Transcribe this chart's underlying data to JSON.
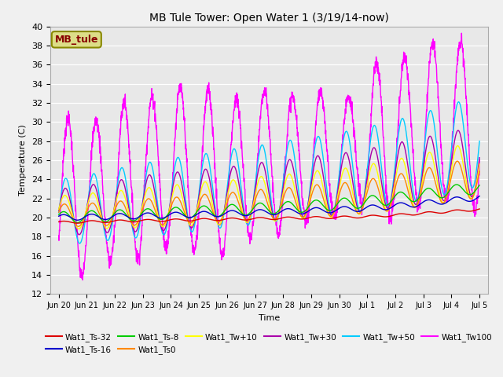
{
  "title": "MB Tule Tower: Open Water 1 (3/19/14-now)",
  "xlabel": "Time",
  "ylabel": "Temperature (C)",
  "ylim": [
    12,
    40
  ],
  "background_color": "#f0f0f0",
  "plot_bg": "#e8e8e8",
  "series": [
    {
      "label": "Wat1_Ts-32",
      "color": "#dd0000"
    },
    {
      "label": "Wat1_Ts-16",
      "color": "#0000cc"
    },
    {
      "label": "Wat1_Ts-8",
      "color": "#00cc00"
    },
    {
      "label": "Wat1_Ts0",
      "color": "#ff8800"
    },
    {
      "label": "Wat1_Tw+10",
      "color": "#ffff00"
    },
    {
      "label": "Wat1_Tw+30",
      "color": "#aa00aa"
    },
    {
      "label": "Wat1_Tw+50",
      "color": "#00ccff"
    },
    {
      "label": "Wat1_Tw100",
      "color": "#ff00ff"
    }
  ],
  "legend_box_text": "MB_tule",
  "legend_box_text_color": "#880000",
  "legend_box_face": "#dddd88",
  "legend_box_edge": "#888800",
  "xtick_labels": [
    "Jun 20",
    "Jun 21",
    "Jun 22",
    "Jun 23",
    "Jun 24",
    "Jun 25",
    "Jun 26",
    "Jun 27",
    "Jun 28",
    "Jun 29",
    "Jun 30",
    "Jul 1",
    "Jul 2",
    "Jul 3",
    "Jul 4",
    "Jul 5"
  ]
}
